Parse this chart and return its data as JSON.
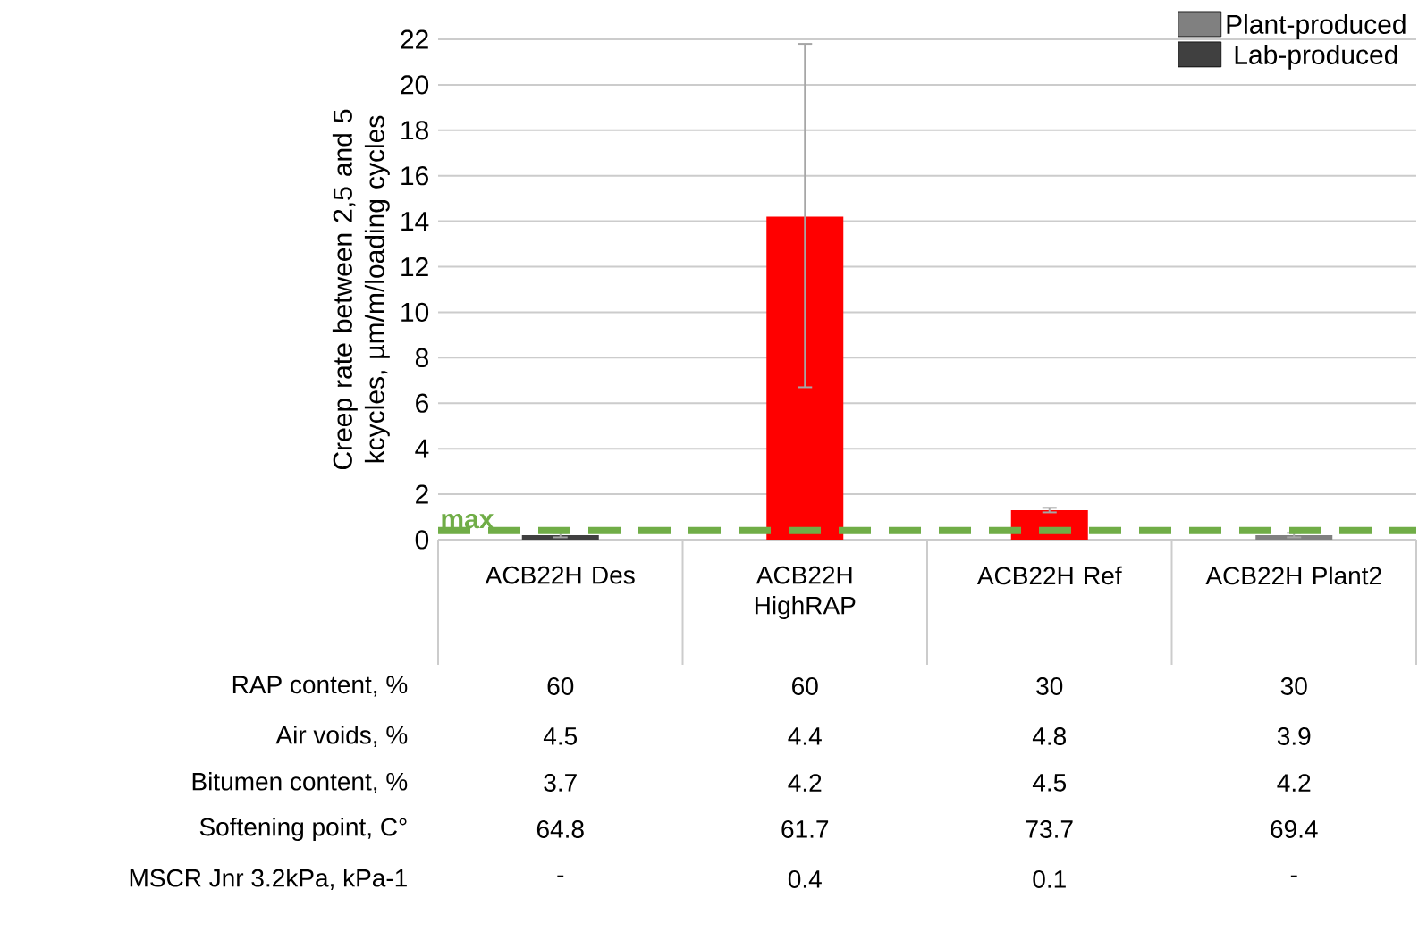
{
  "chart_data": {
    "type": "bar",
    "ylabel": "Creep rate between 2,5 and 5 kcycles, µm/m/loading cycles",
    "categories": [
      "ACB22H Des",
      "ACB22H HighRAP",
      "ACB22H Ref",
      "ACB22H Plant2"
    ],
    "series": [
      {
        "name": "Plant-produced",
        "color": "#808080",
        "colors": [
          null,
          "#ff0000",
          "#ff0000",
          "#808080"
        ],
        "values": [
          null,
          14.2,
          1.3,
          0.2
        ],
        "errors": [
          null,
          [
            6.7,
            21.8
          ],
          0.1,
          0.1
        ]
      },
      {
        "name": "Lab-produced",
        "color": "#404040",
        "values": [
          0.2,
          null,
          null,
          null
        ],
        "errors": [
          0.1,
          null,
          null,
          null
        ]
      }
    ],
    "ylim": [
      0,
      22
    ],
    "yticks": [
      0,
      2,
      4,
      6,
      8,
      10,
      12,
      14,
      16,
      18,
      20,
      22
    ],
    "grid": "y",
    "legend": "top right",
    "ref_lines": [
      {
        "axis": "y",
        "value": 0.4,
        "label": "max",
        "color": "#70ad47",
        "line_style": "dashed"
      }
    ],
    "annotations": [
      "RAP content, %",
      "60",
      "60",
      "30",
      "30",
      "Air voids, %",
      "4.5",
      "4.4",
      "4.8",
      "3.9",
      "Bitumen content, %",
      "3.7",
      "4.2",
      "4.5",
      "4.2",
      "Softening point, C°",
      "64.8",
      "61.7",
      "73.7",
      "69.4",
      "MSCR Jnr 3.2kPa, kPa-1",
      "-",
      "0.4",
      "0.1",
      "-"
    ]
  }
}
